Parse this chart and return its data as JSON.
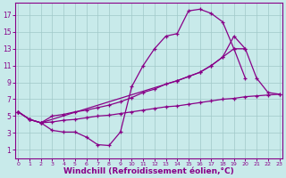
{
  "background_color": "#c8eaea",
  "grid_color": "#a0c8c8",
  "line_color": "#880088",
  "marker_color": "#880088",
  "xlabel": "Windchill (Refroidissement éolien,°C)",
  "xlabel_fontsize": 6.5,
  "ylabel_ticks": [
    1,
    3,
    5,
    7,
    9,
    11,
    13,
    15,
    17
  ],
  "xlabel_ticks": [
    0,
    1,
    2,
    3,
    4,
    5,
    6,
    7,
    8,
    9,
    10,
    11,
    12,
    13,
    14,
    15,
    16,
    17,
    18,
    19,
    20,
    21,
    22,
    23
  ],
  "xlim": [
    -0.3,
    23.3
  ],
  "ylim": [
    0.0,
    18.5
  ],
  "lines": [
    {
      "x": [
        0,
        1,
        2,
        3,
        4,
        5,
        6,
        7,
        8,
        9,
        10,
        11,
        12,
        13,
        14,
        15,
        16,
        17,
        18,
        19,
        20
      ],
      "y": [
        5.5,
        4.6,
        4.2,
        3.3,
        3.1,
        3.1,
        2.5,
        1.6,
        1.5,
        3.1,
        8.5,
        11.0,
        13.0,
        14.5,
        14.8,
        17.5,
        17.7,
        17.2,
        16.2,
        13.0,
        9.5
      ]
    },
    {
      "x": [
        0,
        1,
        2,
        3,
        4,
        5,
        6,
        7,
        8,
        9,
        10,
        11,
        12,
        13,
        14,
        15,
        16,
        17,
        18,
        19,
        20,
        21,
        22,
        23
      ],
      "y": [
        5.5,
        4.6,
        4.2,
        4.3,
        4.5,
        4.6,
        4.8,
        5.0,
        5.1,
        5.3,
        5.5,
        5.7,
        5.9,
        6.1,
        6.2,
        6.4,
        6.6,
        6.8,
        7.0,
        7.1,
        7.3,
        7.4,
        7.5,
        7.6
      ]
    },
    {
      "x": [
        0,
        1,
        2,
        3,
        4,
        5,
        6,
        7,
        8,
        9,
        10,
        11,
        12,
        13,
        14,
        15,
        16,
        17,
        18,
        19,
        20
      ],
      "y": [
        5.5,
        4.6,
        4.2,
        5.0,
        5.2,
        5.5,
        5.7,
        6.0,
        6.3,
        6.7,
        7.2,
        7.8,
        8.2,
        8.8,
        9.2,
        9.7,
        10.2,
        11.0,
        12.0,
        13.0,
        13.0
      ]
    },
    {
      "x": [
        0,
        1,
        2,
        14,
        15,
        16,
        17,
        18,
        19,
        20,
        21,
        22,
        23
      ],
      "y": [
        5.5,
        4.6,
        4.2,
        9.2,
        9.7,
        10.2,
        11.0,
        12.0,
        14.5,
        13.0,
        9.5,
        7.8,
        7.6
      ]
    }
  ]
}
